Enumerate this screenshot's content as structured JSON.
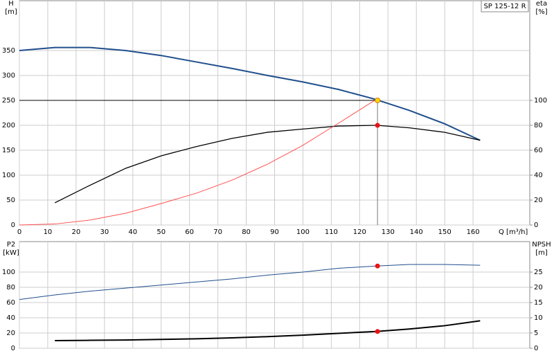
{
  "chart_data": [
    {
      "type": "line",
      "annotation": "SP 125-12 R",
      "ylabel": "H",
      "yunit": "[m]",
      "y2label": "eta",
      "y2unit": "[%]",
      "xlabel": "Q [m³/h]",
      "xlim": [
        0,
        180
      ],
      "xticks": [
        0,
        10,
        20,
        30,
        40,
        50,
        60,
        70,
        80,
        90,
        100,
        110,
        120,
        130,
        140,
        150,
        160
      ],
      "ylim": [
        0,
        450
      ],
      "yticks": [
        0,
        50,
        100,
        150,
        200,
        250,
        300,
        350
      ],
      "y2lim": [
        0,
        180
      ],
      "y2ticks": [
        0,
        20,
        40,
        60,
        80,
        100
      ],
      "grid": true,
      "series": [
        {
          "color": "#1f4e8c",
          "width": 2,
          "x": [
            0,
            12.5,
            25,
            37.5,
            50,
            62.5,
            75,
            87.5,
            100,
            112.5,
            125,
            137.5,
            150,
            162.5
          ],
          "values": [
            350,
            356,
            356,
            350,
            340,
            327,
            314,
            300,
            287,
            272,
            253,
            230,
            203,
            170
          ]
        },
        {
          "color": "#000000",
          "width": 1.3,
          "axis": "y2",
          "x": [
            12.5,
            25,
            37.5,
            50,
            62.5,
            75,
            87.5,
            100,
            112.5,
            126,
            137.5,
            150,
            162.5
          ],
          "values": [
            17.8,
            32,
            45.5,
            55.5,
            63,
            69.5,
            74.4,
            77,
            79.4,
            80,
            78,
            74.4,
            68
          ]
        },
        {
          "color": "#ff5050",
          "width": 1,
          "x": [
            0,
            12.5,
            25,
            37.5,
            50,
            62.5,
            75,
            87.5,
            100,
            112.5,
            125,
            126.3
          ],
          "values": [
            0,
            2,
            10,
            23.6,
            43,
            64,
            90,
            122,
            160,
            204,
            249,
            250
          ]
        }
      ],
      "points": [
        {
          "x": 126.3,
          "value": 250,
          "color": "#ffd700",
          "op_lines": true
        },
        {
          "x": 126.3,
          "value": 80,
          "axis": "y2",
          "color": "#ee1111"
        }
      ]
    },
    {
      "type": "line",
      "ylabel": "P2",
      "yunit": "[kW]",
      "y2label": "NPSH",
      "y2unit": "[m]",
      "xlim": [
        0,
        180
      ],
      "xticks": [
        0,
        10,
        20,
        30,
        40,
        50,
        60,
        70,
        80,
        90,
        100,
        110,
        120,
        130,
        140,
        150,
        160
      ],
      "ylim": [
        0,
        140
      ],
      "yticks": [
        0,
        20,
        40,
        60,
        80,
        100
      ],
      "y2lim": [
        0,
        35
      ],
      "y2ticks": [
        0,
        5,
        10,
        15,
        20,
        25
      ],
      "grid": true,
      "series": [
        {
          "color": "#1f4e8c",
          "width": 1,
          "x": [
            0,
            12.5,
            25,
            37.5,
            50,
            62.5,
            75,
            87.5,
            100,
            112.5,
            126,
            137.5,
            150,
            162.5
          ],
          "values": [
            64,
            70,
            75,
            79,
            83,
            87,
            91,
            96,
            100,
            105,
            108,
            110,
            110,
            109
          ]
        },
        {
          "color": "#000000",
          "width": 2,
          "axis": "y2",
          "x": [
            12.5,
            25,
            37.5,
            50,
            62.5,
            75,
            87.5,
            100,
            112.5,
            126,
            137.5,
            150,
            162.5
          ],
          "values": [
            2.5,
            2.6,
            2.7,
            2.9,
            3.1,
            3.4,
            3.8,
            4.3,
            4.9,
            5.5,
            6.3,
            7.4,
            9.0
          ]
        }
      ],
      "points": [
        {
          "x": 126.3,
          "value": 108,
          "color": "#ee1111"
        },
        {
          "x": 126.3,
          "value": 5.5,
          "axis": "y2",
          "color": "#ee1111"
        }
      ]
    }
  ]
}
